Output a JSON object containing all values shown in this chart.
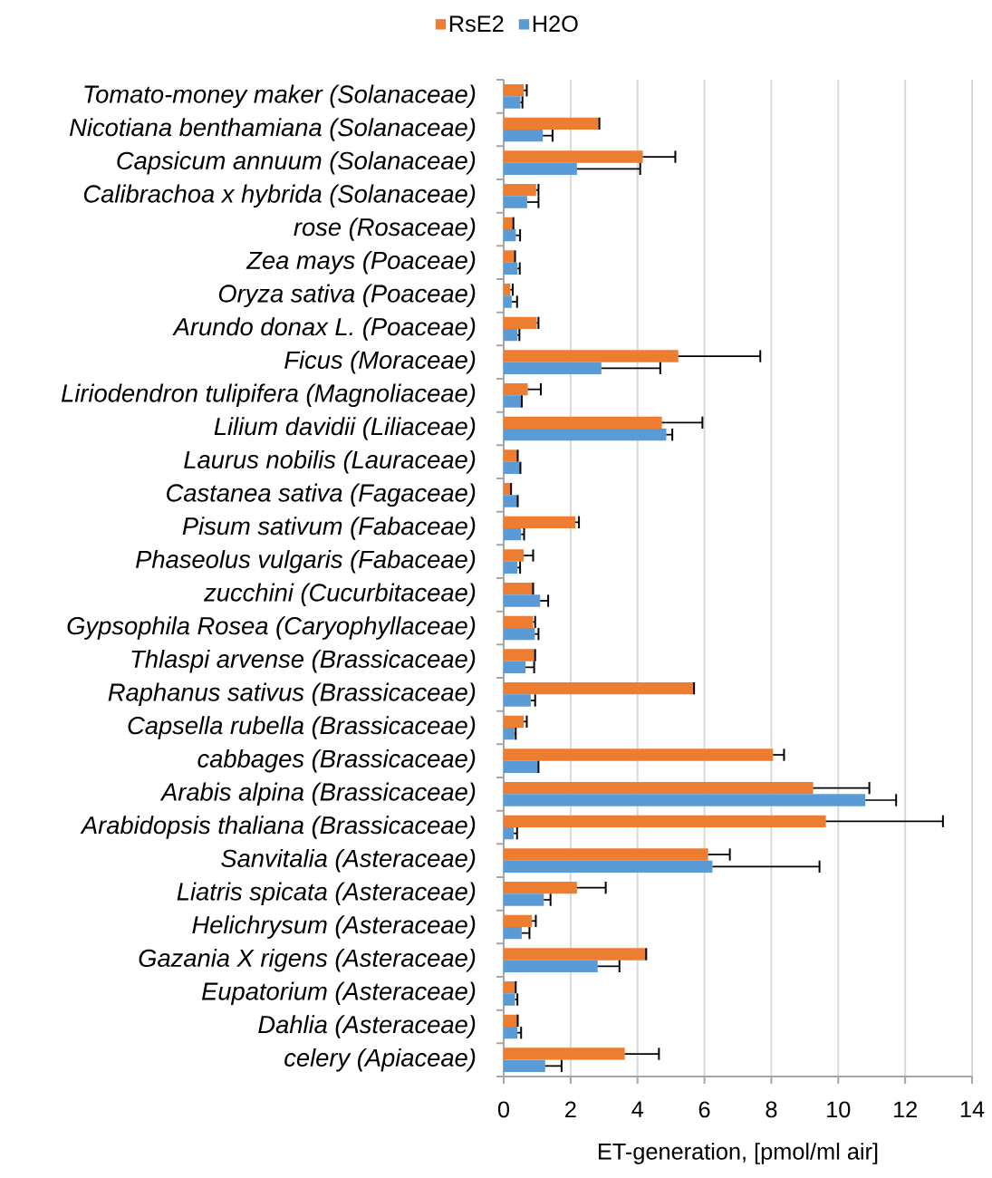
{
  "chart_data": {
    "type": "bar",
    "orientation": "horizontal",
    "categories": [
      "Tomato-money maker (Solanaceae)",
      "Nicotiana benthamiana (Solanaceae)",
      "Capsicum annuum (Solanaceae)",
      "Calibrachoa x hybrida (Solanaceae)",
      "rose (Rosaceae)",
      "Zea mays (Poaceae)",
      "Oryza sativa (Poaceae)",
      "Arundo donax L. (Poaceae)",
      "Ficus (Moraceae)",
      "Liriodendron tulipifera (Magnoliaceae)",
      "Lilium davidii (Liliaceae)",
      "Laurus nobilis (Lauraceae)",
      "Castanea sativa (Fagaceae)",
      "Pisum sativum (Fabaceae)",
      "Phaseolus vulgaris (Fabaceae)",
      "zucchini (Cucurbitaceae)",
      "Gypsophila Rosea (Caryophyllaceae)",
      "Thlaspi arvense (Brassicaceae)",
      "Raphanus sativus (Brassicaceae)",
      "Capsella rubella (Brassicaceae)",
      "cabbages (Brassicaceae)",
      "Arabis alpina (Brassicaceae)",
      "Arabidopsis thaliana (Brassicaceae)",
      "Sanvitalia (Asteraceae)",
      "Liatris spicata (Asteraceae)",
      "Helichrysum (Asteraceae)",
      "Gazania X rigens (Asteraceae)",
      "Eupatorium (Asteraceae)",
      "Dahlia (Asteraceae)",
      "celery (Apiaceae)"
    ],
    "series": [
      {
        "name": "RsE2",
        "color": "#ed7d31",
        "values": [
          0.6,
          2.84,
          4.16,
          0.97,
          0.27,
          0.32,
          0.2,
          0.99,
          5.22,
          0.72,
          4.73,
          0.41,
          0.2,
          2.14,
          0.6,
          0.87,
          0.88,
          0.92,
          5.67,
          0.6,
          8.05,
          9.25,
          9.63,
          6.11,
          2.19,
          0.84,
          4.25,
          0.34,
          0.41,
          3.62
        ],
        "errors": [
          [
            0.6,
            0.69
          ],
          [
            2.84,
            2.86
          ],
          [
            4.16,
            5.13
          ],
          [
            0.97,
            1.04
          ],
          [
            0.27,
            0.29
          ],
          [
            0.32,
            0.34
          ],
          [
            0.2,
            0.27
          ],
          [
            0.99,
            1.04
          ],
          [
            5.22,
            7.67
          ],
          [
            0.72,
            1.11
          ],
          [
            4.73,
            5.94
          ],
          [
            0.41,
            0.42
          ],
          [
            0.2,
            0.22
          ],
          [
            2.14,
            2.25
          ],
          [
            0.6,
            0.88
          ],
          [
            0.87,
            0.88
          ],
          [
            0.88,
            0.94
          ],
          [
            0.92,
            0.94
          ],
          [
            5.67,
            5.69
          ],
          [
            0.6,
            0.69
          ],
          [
            8.05,
            8.38
          ],
          [
            9.25,
            10.93
          ],
          [
            9.63,
            13.13
          ],
          [
            6.11,
            6.76
          ],
          [
            2.19,
            3.05
          ],
          [
            0.84,
            0.96
          ],
          [
            4.25,
            4.26
          ],
          [
            0.34,
            0.36
          ],
          [
            0.41,
            0.42
          ],
          [
            3.62,
            4.64
          ]
        ]
      },
      {
        "name": "H2O",
        "color": "#5b9bd5",
        "values": [
          0.5,
          1.17,
          2.19,
          0.7,
          0.36,
          0.41,
          0.24,
          0.41,
          2.92,
          0.52,
          4.86,
          0.49,
          0.41,
          0.52,
          0.41,
          1.09,
          0.93,
          0.65,
          0.81,
          0.32,
          1.02,
          10.81,
          0.3,
          6.24,
          1.2,
          0.54,
          2.81,
          0.34,
          0.41,
          1.24
        ],
        "errors": [
          [
            0.5,
            0.56
          ],
          [
            1.17,
            1.46
          ],
          [
            2.19,
            4.08
          ],
          [
            0.7,
            1.04
          ],
          [
            0.36,
            0.49
          ],
          [
            0.41,
            0.48
          ],
          [
            0.24,
            0.4
          ],
          [
            0.41,
            0.47
          ],
          [
            2.92,
            4.68
          ],
          [
            0.52,
            0.54
          ],
          [
            4.86,
            5.04
          ],
          [
            0.49,
            0.5
          ],
          [
            0.41,
            0.42
          ],
          [
            0.52,
            0.61
          ],
          [
            0.41,
            0.49
          ],
          [
            1.09,
            1.33
          ],
          [
            0.93,
            1.04
          ],
          [
            0.65,
            0.91
          ],
          [
            0.81,
            0.94
          ],
          [
            0.32,
            0.36
          ],
          [
            1.02,
            1.04
          ],
          [
            10.81,
            11.73
          ],
          [
            0.3,
            0.4
          ],
          [
            6.24,
            9.44
          ],
          [
            1.2,
            1.4
          ],
          [
            0.54,
            0.77
          ],
          [
            2.81,
            3.46
          ],
          [
            0.34,
            0.41
          ],
          [
            0.41,
            0.52
          ],
          [
            1.24,
            1.73
          ]
        ]
      }
    ],
    "xlim": [
      0,
      14
    ],
    "xticks": [
      0,
      2,
      4,
      6,
      8,
      10,
      12,
      14
    ],
    "xlabel": "ET-generation, [pmol/ml air]",
    "grid": "x",
    "legend": "top"
  }
}
